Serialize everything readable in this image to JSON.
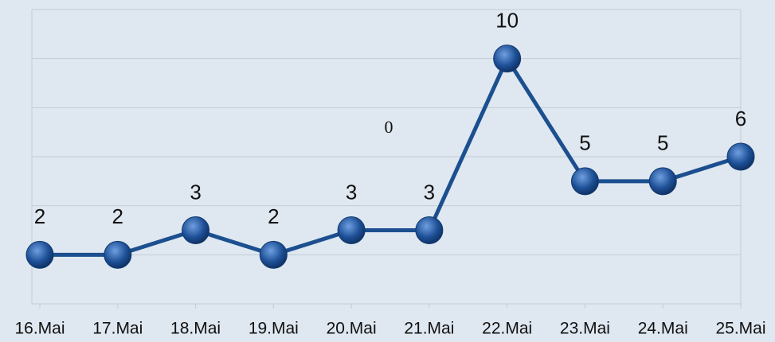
{
  "chart_data": {
    "type": "line",
    "categories": [
      "16.Mai",
      "17.Mai",
      "18.Mai",
      "19.Mai",
      "20.Mai",
      "21.Mai",
      "22.Mai",
      "23.Mai",
      "24.Mai",
      "25.Mai"
    ],
    "series": [
      {
        "name": null,
        "color": "#1c4f8f",
        "values": [
          2,
          2,
          3,
          2,
          3,
          3,
          10,
          5,
          5,
          6
        ]
      }
    ],
    "ylim": [
      0,
      12
    ],
    "yticks": [
      0,
      2,
      4,
      6,
      8,
      10,
      12
    ],
    "grid": true,
    "annotation": "0"
  }
}
